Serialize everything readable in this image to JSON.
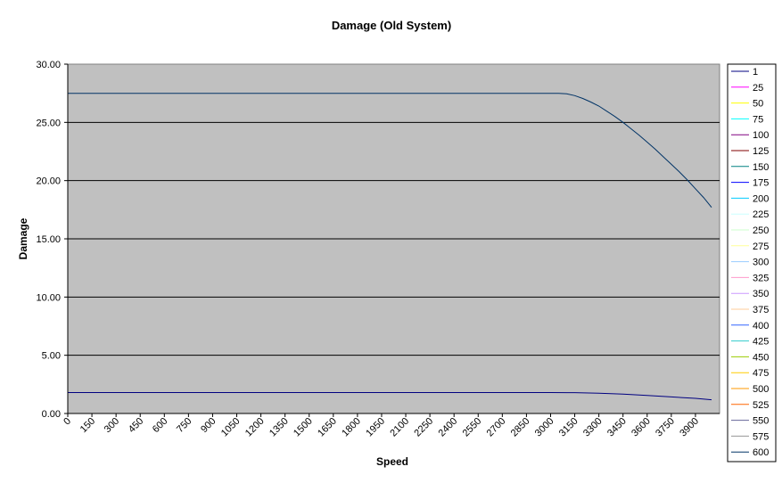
{
  "chart_data": {
    "type": "line",
    "title": "Damage (Old System)",
    "xlabel": "Speed",
    "ylabel": "Damage",
    "xlim": [
      0,
      4050
    ],
    "ylim": [
      0,
      30
    ],
    "y_ticks": [
      "0.00",
      "5.00",
      "10.00",
      "15.00",
      "20.00",
      "25.00",
      "30.00"
    ],
    "x_ticks": [
      "0",
      "150",
      "300",
      "450",
      "600",
      "750",
      "900",
      "1050",
      "1200",
      "1350",
      "1500",
      "1650",
      "1800",
      "1950",
      "2100",
      "2250",
      "2400",
      "2550",
      "2700",
      "2850",
      "3000",
      "3150",
      "3300",
      "3450",
      "3600",
      "3750",
      "3900"
    ],
    "grid": true,
    "plot_background": "#c0c0c0",
    "legend_position": "right",
    "series": [
      {
        "name": "1",
        "color": "#000080",
        "x": [],
        "y": []
      },
      {
        "name": "25",
        "color": "#ff00ff",
        "x": [],
        "y": []
      },
      {
        "name": "50",
        "color": "#ffff00",
        "x": [],
        "y": []
      },
      {
        "name": "75",
        "color": "#00ffff",
        "x": [],
        "y": []
      },
      {
        "name": "100",
        "color": "#800080",
        "x": [],
        "y": []
      },
      {
        "name": "125",
        "color": "#800000",
        "x": [],
        "y": []
      },
      {
        "name": "150",
        "color": "#008080",
        "x": [],
        "y": []
      },
      {
        "name": "175",
        "color": "#0000ff",
        "x": [],
        "y": []
      },
      {
        "name": "200",
        "color": "#00ccff",
        "x": [],
        "y": []
      },
      {
        "name": "225",
        "color": "#ccffff",
        "x": [],
        "y": []
      },
      {
        "name": "250",
        "color": "#ccffcc",
        "x": [],
        "y": []
      },
      {
        "name": "275",
        "color": "#ffff99",
        "x": [],
        "y": []
      },
      {
        "name": "300",
        "color": "#99ccff",
        "x": [],
        "y": []
      },
      {
        "name": "325",
        "color": "#ff99cc",
        "x": [],
        "y": []
      },
      {
        "name": "350",
        "color": "#cc99ff",
        "x": [],
        "y": []
      },
      {
        "name": "375",
        "color": "#ffcc99",
        "x": [],
        "y": []
      },
      {
        "name": "400",
        "color": "#3366ff",
        "x": [],
        "y": []
      },
      {
        "name": "425",
        "color": "#33cccc",
        "x": [],
        "y": []
      },
      {
        "name": "450",
        "color": "#99cc00",
        "x": [],
        "y": []
      },
      {
        "name": "475",
        "color": "#ffcc00",
        "x": [],
        "y": []
      },
      {
        "name": "500",
        "color": "#ff9900",
        "x": [],
        "y": []
      },
      {
        "name": "525",
        "color": "#ff6600",
        "x": [],
        "y": []
      },
      {
        "name": "550",
        "color": "#666699",
        "x": [],
        "y": []
      },
      {
        "name": "575",
        "color": "#969696",
        "x": [],
        "y": []
      },
      {
        "name": "600",
        "color": "#003366",
        "x": [
          0,
          300,
          600,
          900,
          1200,
          1500,
          1800,
          2100,
          2400,
          2700,
          3000,
          3050,
          3100,
          3150,
          3200,
          3250,
          3300,
          3350,
          3400,
          3450,
          3500,
          3550,
          3600,
          3650,
          3700,
          3750,
          3800,
          3850,
          3900,
          3950,
          4000
        ],
        "y": [
          27.5,
          27.5,
          27.5,
          27.5,
          27.5,
          27.5,
          27.5,
          27.5,
          27.5,
          27.5,
          27.5,
          27.5,
          27.45,
          27.3,
          27.05,
          26.75,
          26.4,
          25.95,
          25.5,
          25.0,
          24.45,
          23.9,
          23.3,
          22.7,
          22.05,
          21.4,
          20.75,
          20.05,
          19.3,
          18.55,
          17.7
        ]
      },
      {
        "name": "",
        "color": "#000080",
        "x": [
          0,
          300,
          600,
          900,
          1200,
          1500,
          1800,
          2100,
          2400,
          2700,
          3000,
          3150,
          3300,
          3450,
          3600,
          3750,
          3900,
          4000
        ],
        "y": [
          1.8,
          1.8,
          1.8,
          1.8,
          1.8,
          1.8,
          1.8,
          1.8,
          1.8,
          1.8,
          1.8,
          1.79,
          1.74,
          1.66,
          1.55,
          1.42,
          1.3,
          1.18
        ]
      }
    ]
  }
}
